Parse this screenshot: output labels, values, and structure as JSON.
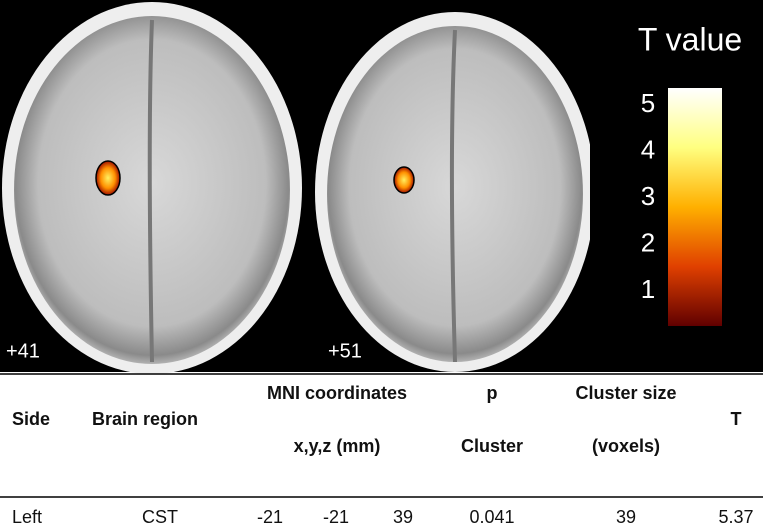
{
  "figure": {
    "slices": [
      {
        "label": "+41"
      },
      {
        "label": "+51"
      }
    ],
    "colorbar": {
      "title": "T value",
      "ticks": [
        5,
        4,
        3,
        2,
        1
      ]
    }
  },
  "table": {
    "header": {
      "side": "Side",
      "region": "Brain region",
      "mni": "MNI coordinates",
      "mni_unit": "x,y,z (mm)",
      "p": "p",
      "p_sub": "Cluster",
      "size": "Cluster size",
      "size_unit": "(voxels)",
      "t": "T"
    },
    "rows": [
      [
        "Left",
        "CST",
        -21,
        -21,
        39,
        0.041,
        39,
        5.37
      ]
    ]
  }
}
